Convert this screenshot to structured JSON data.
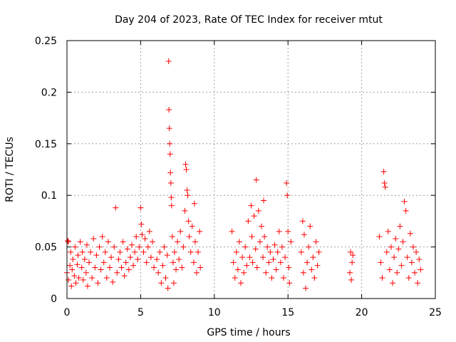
{
  "chart_data": {
    "type": "scatter",
    "title": "Day 204 of 2023, Rate Of TEC Index for receiver mtut",
    "xlabel": "GPS time / hours",
    "ylabel": "ROTI / TECUs",
    "xlim": [
      0,
      25
    ],
    "ylim": [
      0,
      0.25
    ],
    "xticks": [
      0,
      5,
      10,
      15,
      20,
      25
    ],
    "xtick_labels": [
      "0",
      "5",
      "10",
      "15",
      "20",
      "25"
    ],
    "yticks": [
      0,
      0.05,
      0.1,
      0.15,
      0.2,
      0.25
    ],
    "ytick_labels": [
      "0",
      "0.05",
      "0.1",
      "0.15",
      "0.2",
      "0.25"
    ],
    "grid": true,
    "marker": "+",
    "colors": {
      "series": "#ff0000",
      "grid": "#a0a0a0",
      "axis": "#000000"
    },
    "series": [
      {
        "values": [
          [
            0.0,
            0.025
          ],
          [
            0.05,
            0.056
          ],
          [
            0.1,
            0.055
          ],
          [
            0.1,
            0.018
          ],
          [
            0.2,
            0.032
          ],
          [
            0.25,
            0.045
          ],
          [
            0.3,
            0.012
          ],
          [
            0.35,
            0.028
          ],
          [
            0.4,
            0.038
          ],
          [
            0.5,
            0.022
          ],
          [
            0.55,
            0.05
          ],
          [
            0.6,
            0.015
          ],
          [
            0.7,
            0.033
          ],
          [
            0.75,
            0.042
          ],
          [
            0.8,
            0.02
          ],
          [
            0.9,
            0.055
          ],
          [
            1.0,
            0.03
          ],
          [
            1.05,
            0.045
          ],
          [
            1.1,
            0.018
          ],
          [
            1.2,
            0.038
          ],
          [
            1.3,
            0.025
          ],
          [
            1.35,
            0.052
          ],
          [
            1.4,
            0.012
          ],
          [
            1.5,
            0.035
          ],
          [
            1.6,
            0.045
          ],
          [
            1.7,
            0.02
          ],
          [
            1.8,
            0.058
          ],
          [
            1.9,
            0.03
          ],
          [
            2.0,
            0.042
          ],
          [
            2.1,
            0.015
          ],
          [
            2.2,
            0.05
          ],
          [
            2.3,
            0.028
          ],
          [
            2.4,
            0.06
          ],
          [
            2.5,
            0.035
          ],
          [
            2.6,
            0.045
          ],
          [
            2.7,
            0.02
          ],
          [
            2.8,
            0.055
          ],
          [
            2.9,
            0.03
          ],
          [
            3.0,
            0.04
          ],
          [
            3.1,
            0.016
          ],
          [
            3.2,
            0.05
          ],
          [
            3.3,
            0.088
          ],
          [
            3.4,
            0.025
          ],
          [
            3.5,
            0.038
          ],
          [
            3.6,
            0.045
          ],
          [
            3.7,
            0.03
          ],
          [
            3.8,
            0.055
          ],
          [
            3.9,
            0.022
          ],
          [
            4.0,
            0.035
          ],
          [
            4.1,
            0.048
          ],
          [
            4.2,
            0.028
          ],
          [
            4.3,
            0.04
          ],
          [
            4.4,
            0.052
          ],
          [
            4.5,
            0.032
          ],
          [
            4.6,
            0.045
          ],
          [
            4.7,
            0.06
          ],
          [
            4.8,
            0.038
          ],
          [
            4.9,
            0.05
          ],
          [
            5.0,
            0.088
          ],
          [
            5.05,
            0.072
          ],
          [
            5.1,
            0.062
          ],
          [
            5.2,
            0.045
          ],
          [
            5.3,
            0.058
          ],
          [
            5.4,
            0.035
          ],
          [
            5.5,
            0.05
          ],
          [
            5.6,
            0.065
          ],
          [
            5.7,
            0.04
          ],
          [
            5.8,
            0.055
          ],
          [
            5.9,
            0.03
          ],
          [
            6.1,
            0.038
          ],
          [
            6.2,
            0.025
          ],
          [
            6.3,
            0.045
          ],
          [
            6.4,
            0.015
          ],
          [
            6.5,
            0.032
          ],
          [
            6.6,
            0.05
          ],
          [
            6.7,
            0.02
          ],
          [
            6.8,
            0.042
          ],
          [
            6.85,
            0.01
          ],
          [
            6.9,
            0.23
          ],
          [
            6.92,
            0.183
          ],
          [
            6.95,
            0.165
          ],
          [
            6.97,
            0.15
          ],
          [
            7.0,
            0.14
          ],
          [
            7.02,
            0.122
          ],
          [
            7.05,
            0.112
          ],
          [
            7.08,
            0.098
          ],
          [
            7.1,
            0.09
          ],
          [
            7.15,
            0.06
          ],
          [
            7.2,
            0.035
          ],
          [
            7.25,
            0.015
          ],
          [
            7.3,
            0.045
          ],
          [
            7.4,
            0.028
          ],
          [
            7.5,
            0.055
          ],
          [
            7.6,
            0.038
          ],
          [
            7.7,
            0.065
          ],
          [
            7.8,
            0.03
          ],
          [
            7.9,
            0.05
          ],
          [
            8.0,
            0.085
          ],
          [
            8.05,
            0.13
          ],
          [
            8.1,
            0.125
          ],
          [
            8.15,
            0.105
          ],
          [
            8.2,
            0.1
          ],
          [
            8.25,
            0.075
          ],
          [
            8.3,
            0.06
          ],
          [
            8.4,
            0.045
          ],
          [
            8.5,
            0.07
          ],
          [
            8.6,
            0.035
          ],
          [
            8.65,
            0.092
          ],
          [
            8.7,
            0.055
          ],
          [
            8.8,
            0.025
          ],
          [
            8.9,
            0.045
          ],
          [
            9.0,
            0.065
          ],
          [
            9.05,
            0.03
          ],
          [
            11.2,
            0.065
          ],
          [
            11.3,
            0.035
          ],
          [
            11.4,
            0.02
          ],
          [
            11.5,
            0.045
          ],
          [
            11.6,
            0.028
          ],
          [
            11.7,
            0.055
          ],
          [
            11.8,
            0.015
          ],
          [
            11.9,
            0.04
          ],
          [
            12.0,
            0.025
          ],
          [
            12.1,
            0.05
          ],
          [
            12.2,
            0.032
          ],
          [
            12.3,
            0.075
          ],
          [
            12.4,
            0.04
          ],
          [
            12.5,
            0.09
          ],
          [
            12.55,
            0.06
          ],
          [
            12.6,
            0.035
          ],
          [
            12.7,
            0.08
          ],
          [
            12.8,
            0.048
          ],
          [
            12.85,
            0.115
          ],
          [
            12.9,
            0.03
          ],
          [
            13.0,
            0.085
          ],
          [
            13.1,
            0.055
          ],
          [
            13.2,
            0.07
          ],
          [
            13.3,
            0.04
          ],
          [
            13.35,
            0.095
          ],
          [
            13.4,
            0.06
          ],
          [
            13.5,
            0.025
          ],
          [
            13.6,
            0.05
          ],
          [
            13.7,
            0.035
          ],
          [
            13.8,
            0.045
          ],
          [
            13.9,
            0.02
          ],
          [
            14.0,
            0.038
          ],
          [
            14.1,
            0.052
          ],
          [
            14.2,
            0.028
          ],
          [
            14.3,
            0.045
          ],
          [
            14.4,
            0.065
          ],
          [
            14.5,
            0.035
          ],
          [
            14.6,
            0.05
          ],
          [
            14.7,
            0.02
          ],
          [
            14.8,
            0.04
          ],
          [
            14.9,
            0.112
          ],
          [
            14.95,
            0.1
          ],
          [
            15.0,
            0.065
          ],
          [
            15.05,
            0.03
          ],
          [
            15.1,
            0.015
          ],
          [
            15.2,
            0.055
          ],
          [
            15.9,
            0.045
          ],
          [
            16.0,
            0.075
          ],
          [
            16.05,
            0.025
          ],
          [
            16.1,
            0.062
          ],
          [
            16.2,
            0.01
          ],
          [
            16.3,
            0.035
          ],
          [
            16.4,
            0.05
          ],
          [
            16.5,
            0.07
          ],
          [
            16.6,
            0.028
          ],
          [
            16.7,
            0.04
          ],
          [
            16.8,
            0.02
          ],
          [
            16.9,
            0.055
          ],
          [
            17.0,
            0.032
          ],
          [
            17.1,
            0.045
          ],
          [
            19.2,
            0.025
          ],
          [
            19.25,
            0.045
          ],
          [
            19.3,
            0.018
          ],
          [
            19.35,
            0.035
          ],
          [
            19.4,
            0.042
          ],
          [
            21.2,
            0.06
          ],
          [
            21.3,
            0.035
          ],
          [
            21.4,
            0.02
          ],
          [
            21.5,
            0.123
          ],
          [
            21.55,
            0.112
          ],
          [
            21.6,
            0.108
          ],
          [
            21.7,
            0.045
          ],
          [
            21.8,
            0.065
          ],
          [
            21.9,
            0.028
          ],
          [
            22.0,
            0.05
          ],
          [
            22.1,
            0.015
          ],
          [
            22.2,
            0.04
          ],
          [
            22.3,
            0.058
          ],
          [
            22.4,
            0.025
          ],
          [
            22.5,
            0.048
          ],
          [
            22.6,
            0.07
          ],
          [
            22.7,
            0.032
          ],
          [
            22.8,
            0.055
          ],
          [
            22.9,
            0.094
          ],
          [
            23.0,
            0.085
          ],
          [
            23.1,
            0.04
          ],
          [
            23.2,
            0.02
          ],
          [
            23.3,
            0.063
          ],
          [
            23.4,
            0.035
          ],
          [
            23.5,
            0.05
          ],
          [
            23.6,
            0.025
          ],
          [
            23.7,
            0.045
          ],
          [
            23.8,
            0.015
          ],
          [
            23.9,
            0.038
          ],
          [
            24.0,
            0.028
          ]
        ]
      }
    ]
  }
}
